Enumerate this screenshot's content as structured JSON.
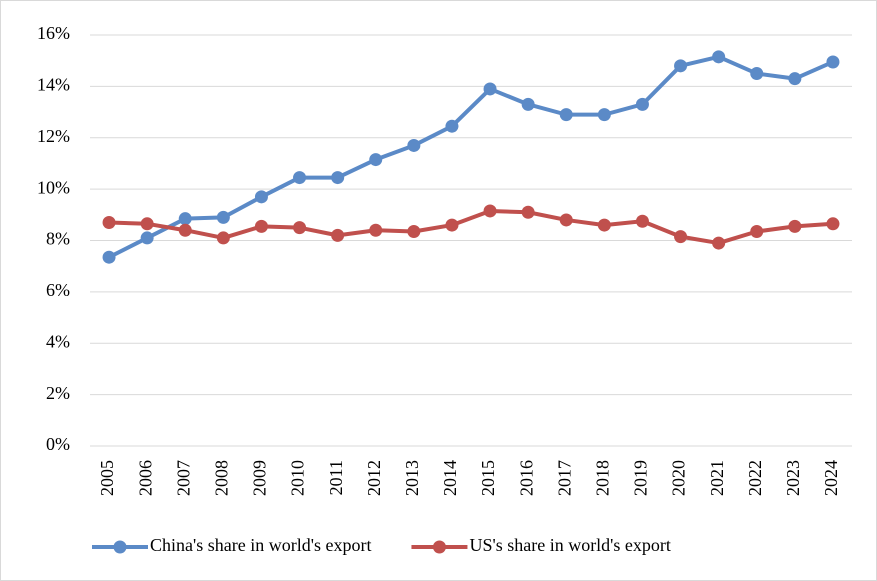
{
  "chart_data": {
    "type": "line",
    "categories": [
      "2005",
      "2006",
      "2007",
      "2008",
      "2009",
      "2010",
      "2011",
      "2012",
      "2013",
      "2014",
      "2015",
      "2016",
      "2017",
      "2018",
      "2019",
      "2020",
      "2021",
      "2022",
      "2023",
      "2024"
    ],
    "series": [
      {
        "name": "China's share in world's export",
        "color": "#5b8ac7",
        "values": [
          7.35,
          8.1,
          8.85,
          8.9,
          9.7,
          10.45,
          10.45,
          11.15,
          11.7,
          12.45,
          13.9,
          13.3,
          12.9,
          12.9,
          13.3,
          14.8,
          15.15,
          14.5,
          14.3,
          14.95
        ]
      },
      {
        "name": "US's share in world's export",
        "color": "#c0504d",
        "values": [
          8.7,
          8.65,
          8.4,
          8.1,
          8.55,
          8.5,
          8.2,
          8.4,
          8.35,
          8.6,
          9.15,
          9.1,
          8.8,
          8.6,
          8.75,
          8.15,
          7.9,
          8.35,
          8.55,
          8.65
        ]
      }
    ],
    "ylim": [
      0,
      16
    ],
    "yticks": [
      {
        "value": 0,
        "label": "0%"
      },
      {
        "value": 2,
        "label": "2%"
      },
      {
        "value": 4,
        "label": "4%"
      },
      {
        "value": 6,
        "label": "6%"
      },
      {
        "value": 8,
        "label": "8%"
      },
      {
        "value": 10,
        "label": "10%"
      },
      {
        "value": 12,
        "label": "12%"
      },
      {
        "value": 14,
        "label": "14%"
      },
      {
        "value": 16,
        "label": "16%"
      }
    ],
    "grid": true,
    "legend": "bottom"
  }
}
